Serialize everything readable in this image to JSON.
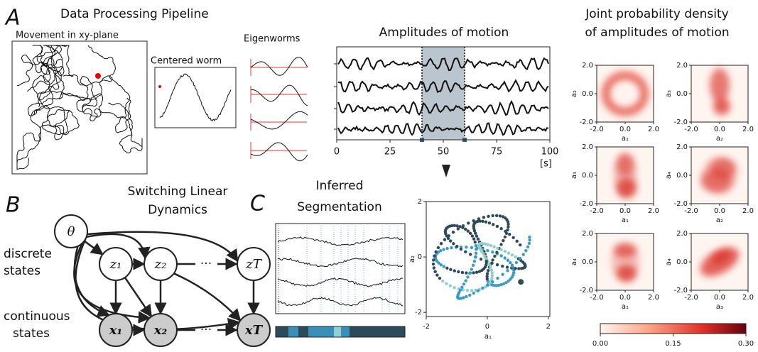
{
  "panel_a": {
    "letter": "A",
    "title": "Data Processing Pipeline",
    "movement": "Movement in xy-plane",
    "centered": "Centered worm",
    "eigenworms": "Eigenworms",
    "amplitudes": {
      "title": "Amplitudes of motion",
      "xlim": [
        0,
        100
      ],
      "xticks": [
        0,
        25,
        50,
        75,
        100
      ],
      "x_unit": "[s]",
      "window": [
        40,
        60
      ]
    }
  },
  "joint_density": {
    "title_lines": [
      "Joint probability density",
      "of amplitudes of motion"
    ],
    "plots": [
      {
        "x_label": "a₁",
        "y_label": "a₂"
      },
      {
        "x_label": "a₂",
        "y_label": "a₃"
      },
      {
        "x_label": "a₁",
        "y_label": "a₃"
      },
      {
        "x_label": "a₂",
        "y_label": "a₄"
      },
      {
        "x_label": "a₁",
        "y_label": "a₄"
      },
      {
        "x_label": "a₃",
        "y_label": "a₄"
      }
    ],
    "lim": [
      -2,
      2
    ],
    "ticks": [
      {
        "value": -2,
        "label": "-2.0"
      },
      {
        "value": 0,
        "label": "0.0"
      },
      {
        "value": 2,
        "label": "2.0"
      }
    ],
    "colorbar": {
      "lim": [
        0,
        0.3
      ],
      "ticks": [
        {
          "value": 0,
          "label": "0.00"
        },
        {
          "value": 0.15,
          "label": "0.15"
        },
        {
          "value": 0.3,
          "label": "0.30"
        }
      ]
    }
  },
  "panel_b": {
    "letter": "B",
    "title_lines": [
      "Switching Linear",
      "Dynamics"
    ],
    "nodes": [
      "θ",
      "z₁",
      "z₂",
      "zT",
      "x₁",
      "x₂",
      "xT"
    ],
    "dots": "···",
    "discrete_lines": [
      "discrete",
      "states"
    ],
    "continuous_lines": [
      "continuous",
      "states"
    ]
  },
  "panel_c": {
    "letter": "C",
    "title_lines": [
      "Inferred",
      "Segmentation"
    ],
    "scatter": {
      "xlim": [
        -2,
        2.05
      ],
      "ylim": [
        -2.15,
        2
      ],
      "xticks": [
        -2,
        0,
        2
      ],
      "yticks": [
        -2,
        0,
        2
      ],
      "x_label": "a₁",
      "y_label": "a₂"
    }
  }
}
